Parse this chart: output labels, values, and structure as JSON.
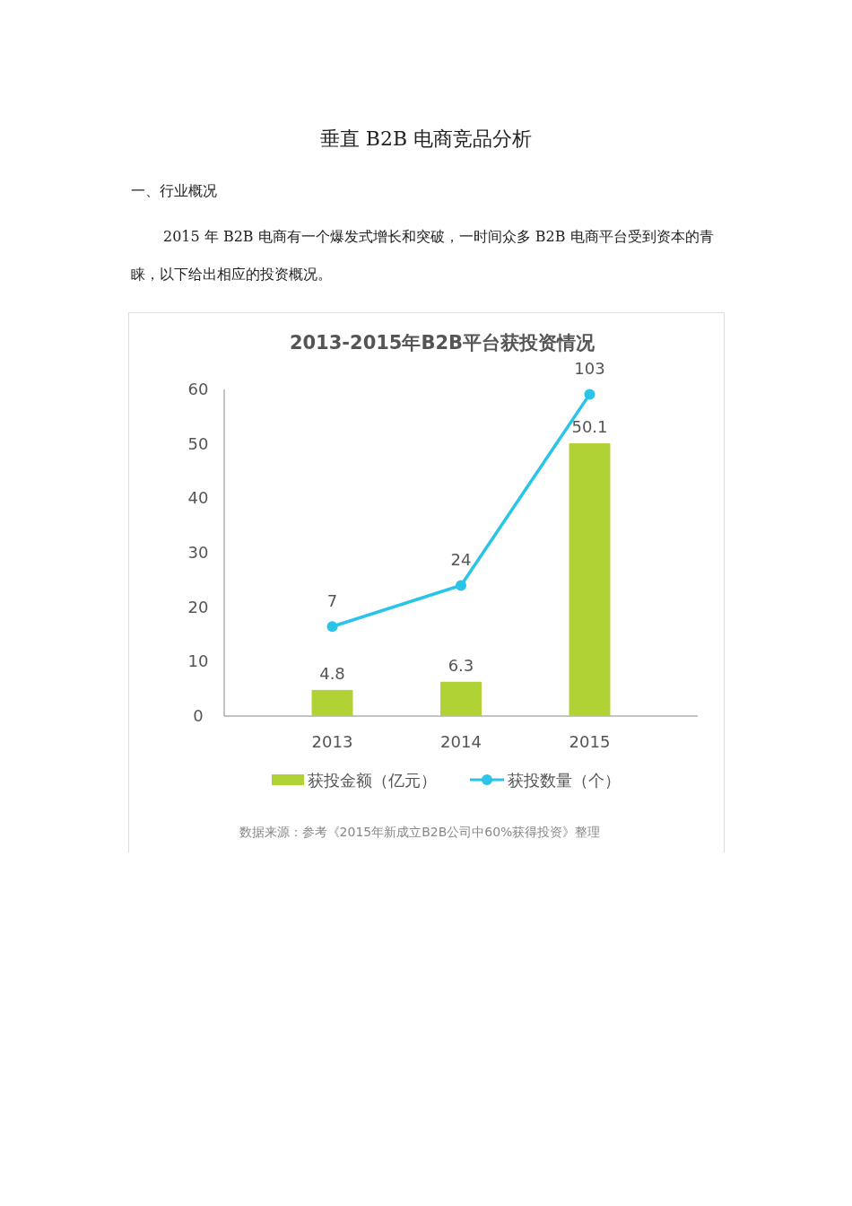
{
  "chart_data": {
    "type": "bar",
    "title": "2013-2015年B2B平台获投资情况",
    "categories": [
      "2013",
      "2014",
      "2015"
    ],
    "series": [
      {
        "name": "获投金额（亿元）",
        "color": "#b0d235",
        "values": [
          4.8,
          6.3,
          50.1
        ]
      },
      {
        "name": "获投数量（个）",
        "type": "line",
        "axis": "y2",
        "color": "#29c4e8",
        "values": [
          7,
          24,
          103
        ]
      }
    ],
    "ylim": [
      0,
      60
    ],
    "yticks": [
      0,
      10,
      20,
      30,
      40,
      50,
      60
    ],
    "y2lim": [
      -30,
      105
    ],
    "grid": false,
    "legend": "bottom",
    "marker": "circle",
    "data_labels": true,
    "annotations": [
      "垂直 B2B 电商竞品分析",
      "一、行业概况",
      "2015 年 B2B 电商有一个爆发式增长和突破，一时间众多 B2B 电商平台受到资本的青睐，以下给出相应的投资概况。",
      "数据来源：参考《2015年新成立B2B公司中60%获得投资》整理"
    ]
  }
}
